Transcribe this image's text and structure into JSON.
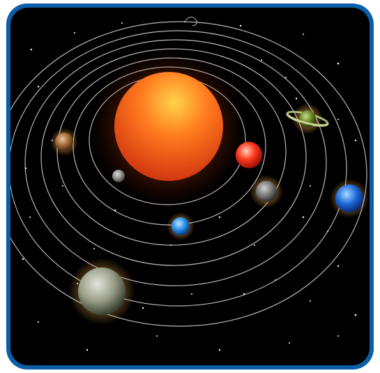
{
  "frame_color": "#0b5fa8",
  "background_color": "#000000",
  "orbit_color": "#d8d8d8",
  "scene": "solar-system",
  "bodies": [
    {
      "name": "sun-icon",
      "colors": [
        "#ffd34a",
        "#ff7a1e",
        "#d43a10"
      ]
    },
    {
      "name": "planet-mercury-icon",
      "colors": [
        "#d8d8d8",
        "#8a8a8a",
        "#3e3e3e"
      ]
    },
    {
      "name": "planet-venus-icon",
      "colors": [
        "#ffd0c0",
        "#ff3a1e",
        "#9a1008"
      ]
    },
    {
      "name": "planet-earth-icon",
      "colors": [
        "#bfe6ff",
        "#2a8ee8",
        "#0a3a7a"
      ]
    },
    {
      "name": "planet-mars-icon",
      "colors": [
        "#e6c3a0",
        "#a36a3a",
        "#4a2a12"
      ]
    },
    {
      "name": "planet-jupiter-icon",
      "colors": [
        "#e6e6dc",
        "#9aa08a",
        "#3a4232"
      ]
    },
    {
      "name": "planet-saturn-icon",
      "colors": [
        "#c6e08a",
        "#6a8a2a",
        "#2a3a0a"
      ]
    },
    {
      "name": "planet-uranus-icon",
      "colors": [
        "#d0d0d0",
        "#7a7a7a",
        "#2e2e2e"
      ]
    },
    {
      "name": "planet-neptune-icon",
      "colors": [
        "#a8d8ff",
        "#1e6ad8",
        "#0a2a78"
      ]
    }
  ]
}
